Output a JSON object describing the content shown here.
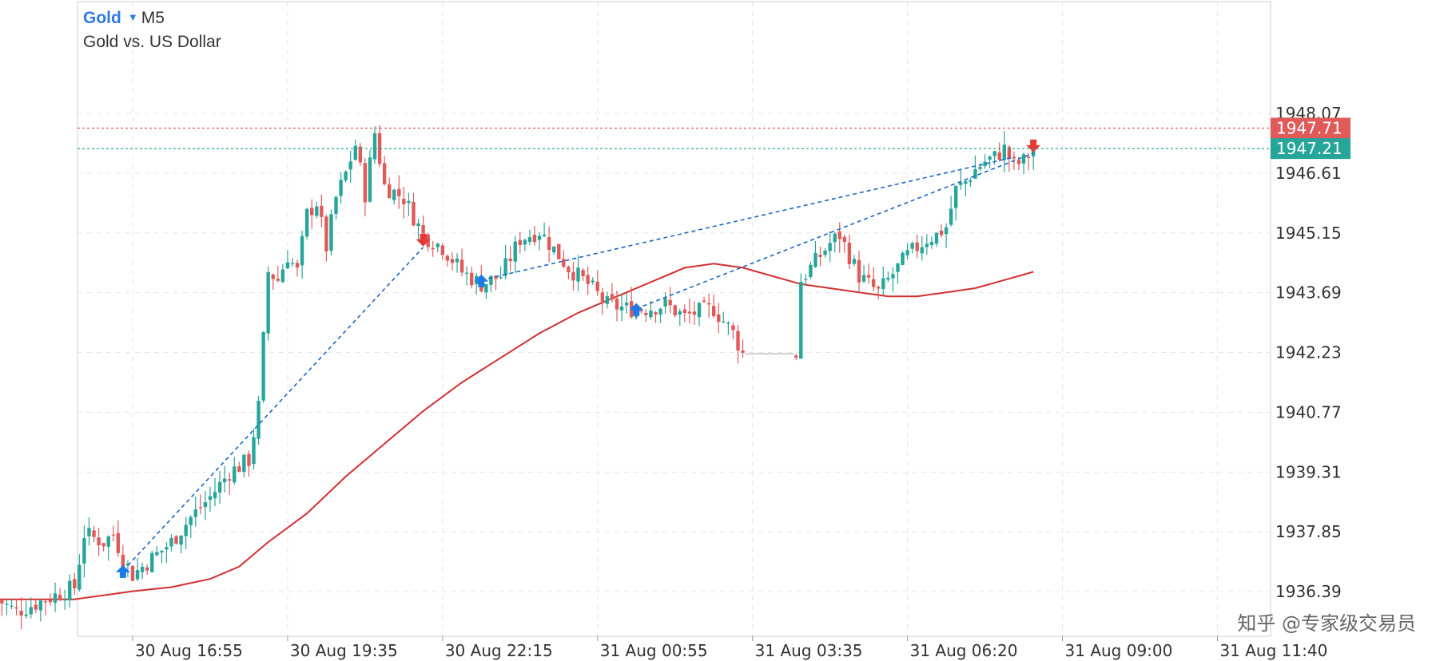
{
  "header": {
    "symbol": "Gold",
    "timeframe": "M5",
    "description": "Gold vs. US Dollar"
  },
  "watermark": "知乎 @专家级交易员",
  "colors": {
    "bull": "#26a69a",
    "bear": "#e05a5a",
    "ma": "#d32f2f",
    "trade_line": "#1a66c6",
    "buy_arrow": "#1e7ae6",
    "sell_arrow": "#e53935",
    "grid": "#e6e6e6",
    "ask_line": "#e05a5a",
    "bid_line": "#26a69a"
  },
  "chart_data": {
    "type": "candlestick",
    "title": "Gold M5",
    "ylim": [
      1935.3,
      1950.8
    ],
    "y_ticks": [
      1948.07,
      1946.61,
      1945.15,
      1943.69,
      1942.23,
      1940.77,
      1939.31,
      1937.85,
      1936.39
    ],
    "x_tick_labels": [
      "30 Aug 16:55",
      "30 Aug 19:35",
      "30 Aug 22:15",
      "31 Aug 00:55",
      "31 Aug 03:35",
      "31 Aug 06:20",
      "31 Aug 09:00",
      "31 Aug 11:40"
    ],
    "x_ticks_bar_index": [
      10,
      42,
      74,
      106,
      138,
      170,
      202,
      234
    ],
    "price_tags": [
      {
        "label": "1947.71",
        "value": 1947.71,
        "kind": "ask"
      },
      {
        "label": "1947.21",
        "value": 1947.21,
        "kind": "bid"
      }
    ],
    "grid": true,
    "series": [
      {
        "name": "Gold",
        "kind": "candles",
        "first_bar_index": -18,
        "close_path": [
          [
            -18,
            1936.2
          ],
          [
            -14,
            1935.9
          ],
          [
            -10,
            1936.1
          ],
          [
            -6,
            1936.3
          ],
          [
            -2,
            1936.5
          ],
          [
            0,
            1937.8
          ],
          [
            4,
            1937.6
          ],
          [
            6,
            1937.8
          ],
          [
            8,
            1937.2
          ],
          [
            10,
            1936.8
          ],
          [
            14,
            1937.2
          ],
          [
            18,
            1937.6
          ],
          [
            22,
            1938.2
          ],
          [
            26,
            1938.7
          ],
          [
            30,
            1939.3
          ],
          [
            34,
            1939.6
          ],
          [
            36,
            1940.9
          ],
          [
            38,
            1944.2
          ],
          [
            40,
            1944.0
          ],
          [
            42,
            1944.6
          ],
          [
            44,
            1944.2
          ],
          [
            46,
            1945.6
          ],
          [
            48,
            1945.9
          ],
          [
            50,
            1944.8
          ],
          [
            52,
            1946.0
          ],
          [
            54,
            1946.6
          ],
          [
            56,
            1947.3
          ],
          [
            58,
            1946.1
          ],
          [
            60,
            1947.6
          ],
          [
            62,
            1946.3
          ],
          [
            66,
            1946.0
          ],
          [
            70,
            1945.1
          ],
          [
            74,
            1944.8
          ],
          [
            78,
            1944.2
          ],
          [
            82,
            1943.9
          ],
          [
            86,
            1944.1
          ],
          [
            90,
            1945.0
          ],
          [
            94,
            1945.2
          ],
          [
            96,
            1944.9
          ],
          [
            100,
            1944.3
          ],
          [
            104,
            1943.9
          ],
          [
            108,
            1943.4
          ],
          [
            112,
            1943.3
          ],
          [
            116,
            1943.3
          ],
          [
            120,
            1943.4
          ],
          [
            124,
            1943.1
          ],
          [
            126,
            1943.2
          ],
          [
            130,
            1943.3
          ],
          [
            134,
            1942.7
          ],
          [
            136,
            1942.2
          ],
          [
            147,
            1942.2
          ],
          [
            148,
            1944.0
          ],
          [
            150,
            1944.3
          ],
          [
            152,
            1944.6
          ],
          [
            154,
            1944.9
          ],
          [
            156,
            1945.1
          ],
          [
            158,
            1944.6
          ],
          [
            160,
            1944.1
          ],
          [
            162,
            1943.9
          ],
          [
            164,
            1943.7
          ],
          [
            166,
            1944.0
          ],
          [
            168,
            1944.3
          ],
          [
            170,
            1944.6
          ],
          [
            172,
            1944.8
          ],
          [
            174,
            1945.0
          ],
          [
            176,
            1945.1
          ],
          [
            178,
            1945.3
          ],
          [
            180,
            1946.2
          ],
          [
            182,
            1946.4
          ],
          [
            184,
            1946.7
          ],
          [
            186,
            1946.9
          ],
          [
            188,
            1947.0
          ],
          [
            190,
            1947.2
          ],
          [
            192,
            1946.8
          ],
          [
            194,
            1946.9
          ],
          [
            196,
            1947.2
          ]
        ]
      },
      {
        "name": "MA",
        "kind": "line",
        "points": [
          [
            -18,
            1936.2
          ],
          [
            -10,
            1936.2
          ],
          [
            -2,
            1936.2
          ],
          [
            4,
            1936.3
          ],
          [
            10,
            1936.4
          ],
          [
            18,
            1936.5
          ],
          [
            26,
            1936.7
          ],
          [
            32,
            1937.0
          ],
          [
            38,
            1937.6
          ],
          [
            46,
            1938.3
          ],
          [
            54,
            1939.2
          ],
          [
            62,
            1940.0
          ],
          [
            70,
            1940.8
          ],
          [
            78,
            1941.5
          ],
          [
            86,
            1942.1
          ],
          [
            94,
            1942.7
          ],
          [
            102,
            1943.2
          ],
          [
            110,
            1943.6
          ],
          [
            118,
            1944.0
          ],
          [
            124,
            1944.3
          ],
          [
            130,
            1944.4
          ],
          [
            136,
            1944.3
          ],
          [
            142,
            1944.1
          ],
          [
            148,
            1943.9
          ],
          [
            154,
            1943.8
          ],
          [
            160,
            1943.7
          ],
          [
            166,
            1943.6
          ],
          [
            172,
            1943.6
          ],
          [
            178,
            1943.7
          ],
          [
            184,
            1943.8
          ],
          [
            190,
            1944.0
          ],
          [
            196,
            1944.2
          ]
        ]
      }
    ],
    "trades": [
      {
        "type": "buy",
        "open_bar": 8,
        "open_price": 1936.9,
        "close_bar": 70,
        "close_price": 1944.8,
        "close_type": "sell"
      },
      {
        "type": "buy",
        "open_bar": 82,
        "open_price": 1944.0,
        "close_bar": 192,
        "close_price": 1947.0,
        "close_type": "none"
      },
      {
        "type": "buy",
        "open_bar": 114,
        "open_price": 1943.3,
        "close_bar": 196,
        "close_price": 1947.1,
        "close_type": "sell"
      }
    ]
  }
}
